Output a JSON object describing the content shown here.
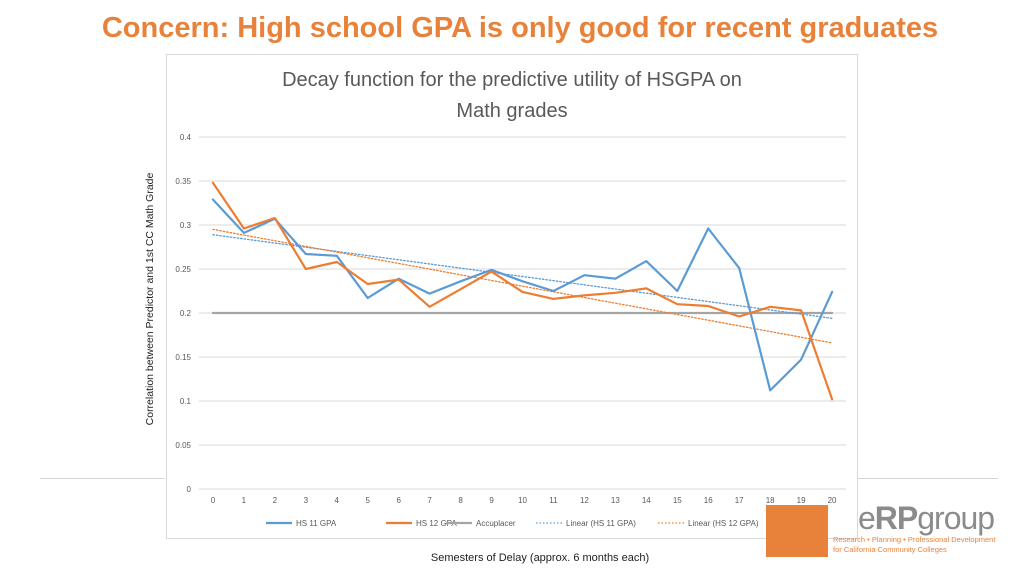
{
  "slide": {
    "title": "Concern: High school GPA is only good for recent graduates"
  },
  "logo": {
    "mark_prefix": "e",
    "mark_bold": "RP",
    "mark_suffix": "group",
    "tagline_line1": "Research • Planning • Professional Development",
    "tagline_line2": "for California Community Colleges",
    "brand_color": "#e8823a"
  },
  "chart_data": {
    "type": "line",
    "title_line1": "Decay function for the predictive utility of HSGPA on",
    "title_line2": "Math grades",
    "xlabel": "Semesters of Delay (approx. 6 months each)",
    "ylabel": "Correlation between Predictor and 1st CC Math Grade",
    "x": [
      0,
      1,
      2,
      3,
      4,
      5,
      6,
      7,
      8,
      9,
      10,
      11,
      12,
      13,
      14,
      15,
      16,
      17,
      18,
      19,
      20
    ],
    "ylim": [
      0,
      0.4
    ],
    "yticks": [
      "0",
      "0.05",
      "0.1",
      "0.15",
      "0.2",
      "0.25",
      "0.3",
      "0.35",
      "0.4"
    ],
    "grid": true,
    "legend_position": "bottom",
    "series": [
      {
        "name": "HS 11 GPA",
        "color": "#5b9bd5",
        "style": "solid",
        "values": [
          0.329,
          0.291,
          0.307,
          0.267,
          0.265,
          0.217,
          0.239,
          0.222,
          0.236,
          0.249,
          0.236,
          0.225,
          0.243,
          0.239,
          0.259,
          0.225,
          0.296,
          0.251,
          0.112,
          0.147,
          0.224
        ]
      },
      {
        "name": "HS 12 GPA",
        "color": "#ed7d31",
        "style": "solid",
        "values": [
          0.348,
          0.296,
          0.308,
          0.25,
          0.258,
          0.233,
          0.238,
          0.207,
          0.227,
          0.247,
          0.224,
          0.216,
          0.22,
          0.223,
          0.228,
          0.21,
          0.208,
          0.196,
          0.207,
          0.203,
          0.102
        ]
      },
      {
        "name": "Accuplacer",
        "color": "#a5a5a5",
        "style": "solid",
        "values": [
          0.2,
          0.2,
          0.2,
          0.2,
          0.2,
          0.2,
          0.2,
          0.2,
          0.2,
          0.2,
          0.2,
          0.2,
          0.2,
          0.2,
          0.2,
          0.2,
          0.2,
          0.2,
          0.2,
          0.2,
          0.2
        ]
      },
      {
        "name": "Linear (HS 11 GPA)",
        "color": "#5b9bd5",
        "style": "dotted",
        "trend": [
          0.289,
          0.194
        ]
      },
      {
        "name": "Linear (HS 12 GPA)",
        "color": "#ed7d31",
        "style": "dotted",
        "trend": [
          0.295,
          0.166
        ]
      }
    ]
  }
}
